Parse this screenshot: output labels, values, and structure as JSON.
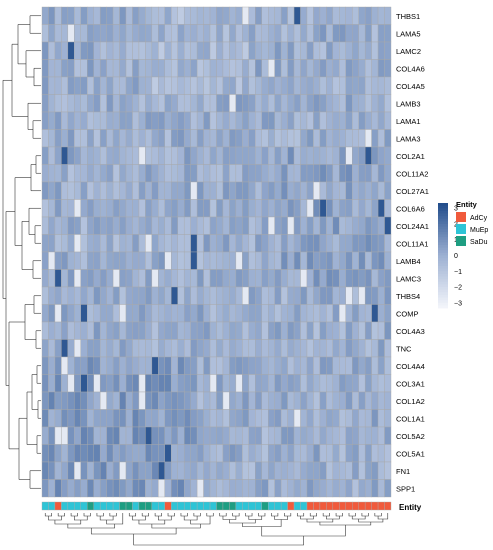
{
  "chart_data": {
    "type": "heatmap",
    "rows": [
      "THBS1",
      "LAMA5",
      "LAMC2",
      "COL4A6",
      "COL4A5",
      "LAMB3",
      "LAMA1",
      "LAMA3",
      "COL2A1",
      "COL11A2",
      "COL27A1",
      "COL6A6",
      "COL24A1",
      "COL11A1",
      "LAMB4",
      "LAMC3",
      "THBS4",
      "COMP",
      "COL4A3",
      "TNC",
      "COL4A4",
      "COL3A1",
      "COL1A2",
      "COL1A1",
      "COL5A2",
      "COL5A1",
      "FN1",
      "SPP1"
    ],
    "annotation_label": "Entity",
    "column_entities": [
      "MuEp",
      "MuEp",
      "AdCy",
      "MuEp",
      "MuEp",
      "MuEp",
      "MuEp",
      "SaDu",
      "MuEp",
      "MuEp",
      "MuEp",
      "MuEp",
      "SaDu",
      "SaDu",
      "MuEp",
      "SaDu",
      "SaDu",
      "MuEp",
      "MuEp",
      "AdCy",
      "MuEp",
      "MuEp",
      "MuEp",
      "MuEp",
      "MuEp",
      "MuEp",
      "MuEp",
      "SaDu",
      "SaDu",
      "SaDu",
      "MuEp",
      "MuEp",
      "MuEp",
      "MuEp",
      "SaDu",
      "MuEp",
      "MuEp",
      "MuEp",
      "AdCy",
      "MuEp",
      "MuEp",
      "AdCy",
      "AdCy",
      "AdCy",
      "AdCy",
      "AdCy",
      "AdCy",
      "AdCy",
      "AdCy",
      "AdCy",
      "AdCy",
      "AdCy",
      "AdCy",
      "AdCy"
    ],
    "legend": {
      "colorbar_ticks": [
        "3",
        "2",
        "1",
        "0",
        "−1",
        "−2",
        "−3"
      ],
      "entity_title": "Entity",
      "entities": [
        {
          "name": "AdCy",
          "color": "#F05A3C"
        },
        {
          "name": "MuEp",
          "color": "#2EC4D6"
        },
        {
          "name": "SaDu",
          "color": "#1E9E82"
        }
      ]
    },
    "scale": {
      "min": -3,
      "max": 3,
      "low_color": "#F2F4FA",
      "mid_color": "#9CB0D2",
      "high_color": "#234E8C"
    }
  }
}
